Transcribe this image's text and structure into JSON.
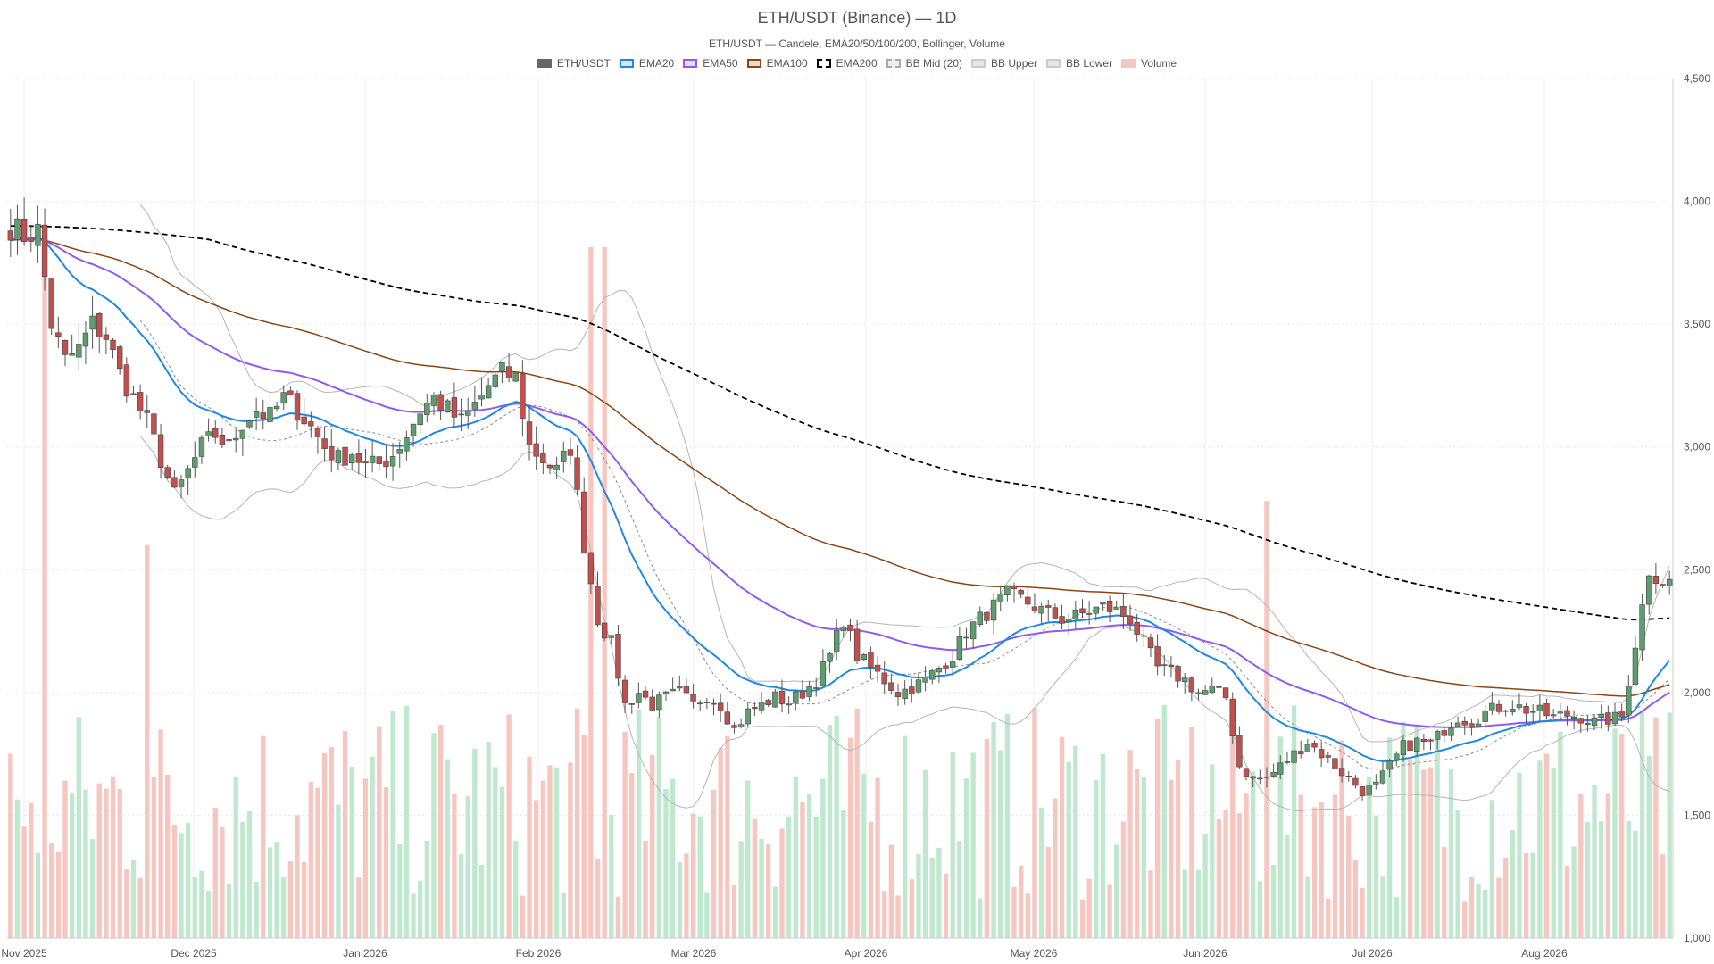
{
  "chart_data": {
    "type": "candlestick",
    "title": "ETH/USDT (Binance) — 1D",
    "subtitle": "ETH/USDT — Candele, EMA20/50/100/200, Bollinger, Volume",
    "ylim": [
      1000,
      4500
    ],
    "y_ticks": [
      "1,000",
      "1,500",
      "2,000",
      "2,500",
      "3,000",
      "3,500",
      "4,000",
      "4,500"
    ],
    "y_tick_values": [
      1000,
      1500,
      2000,
      2500,
      3000,
      3500,
      4000,
      4500
    ],
    "x_ticks": [
      "Nov 2025",
      "Dec 2025",
      "Jan 2026",
      "Feb 2026",
      "Mar 2026",
      "Apr 2026",
      "May 2026",
      "Jun 2026",
      "Jul 2026",
      "Aug 2026"
    ],
    "grid": true,
    "legend_placement": "top-center",
    "colors": {
      "up": "#5e9e6e",
      "down": "#c0504d",
      "ema20": "#1e88e5",
      "ema50": "#8e5cf0",
      "ema100": "#8b4513",
      "ema200": "#000000",
      "bb": "#b5b5b5",
      "vol_up": "#bfe8cf",
      "vol_down": "#f6c6c0"
    },
    "legend": [
      {
        "label": "ETH/USDT",
        "fill": "#666666",
        "border": "#666666"
      },
      {
        "label": "EMA20",
        "fill": "#d6e8f8",
        "border": "#1e88e5"
      },
      {
        "label": "EMA50",
        "fill": "#e6dcfb",
        "border": "#8e5cf0"
      },
      {
        "label": "EMA100",
        "fill": "#ead9cb",
        "border": "#8b4513"
      },
      {
        "label": "EMA200",
        "fill": "#ffffff",
        "border": "#000000",
        "dashed": true
      },
      {
        "label": "BB Mid (20)",
        "fill": "#eeeeee",
        "border": "#aaaaaa",
        "dashed": true
      },
      {
        "label": "BB Upper",
        "fill": "#e6e6e6",
        "border": "#cccccc"
      },
      {
        "label": "BB Lower",
        "fill": "#e6e6e6",
        "border": "#cccccc"
      },
      {
        "label": "Volume",
        "fill": "#f6c6c0",
        "border": "#f6c6c0"
      }
    ],
    "close_anchors": [
      [
        0,
        3900
      ],
      [
        2,
        3860
      ],
      [
        4,
        3880
      ],
      [
        6,
        3500
      ],
      [
        8,
        3350
      ],
      [
        10,
        3400
      ],
      [
        12,
        3500
      ],
      [
        14,
        3450
      ],
      [
        16,
        3300
      ],
      [
        18,
        3200
      ],
      [
        20,
        3100
      ],
      [
        22,
        2950
      ],
      [
        24,
        2800
      ],
      [
        26,
        2900
      ],
      [
        28,
        3000
      ],
      [
        30,
        3050
      ],
      [
        32,
        3000
      ],
      [
        34,
        3100
      ],
      [
        36,
        3150
      ],
      [
        38,
        3120
      ],
      [
        40,
        3200
      ],
      [
        42,
        3150
      ],
      [
        44,
        3080
      ],
      [
        46,
        3000
      ],
      [
        48,
        2950
      ],
      [
        50,
        2980
      ],
      [
        52,
        2920
      ],
      [
        54,
        2930
      ],
      [
        56,
        2970
      ],
      [
        58,
        3050
      ],
      [
        60,
        3150
      ],
      [
        62,
        3200
      ],
      [
        64,
        3150
      ],
      [
        66,
        3100
      ],
      [
        68,
        3170
      ],
      [
        70,
        3250
      ],
      [
        72,
        3300
      ],
      [
        74,
        3280
      ],
      [
        76,
        3000
      ],
      [
        78,
        2950
      ],
      [
        80,
        2900
      ],
      [
        82,
        3000
      ],
      [
        84,
        2600
      ],
      [
        86,
        2300
      ],
      [
        88,
        2200
      ],
      [
        90,
        1950
      ],
      [
        92,
        2000
      ],
      [
        94,
        1950
      ],
      [
        96,
        1980
      ],
      [
        98,
        2000
      ],
      [
        100,
        1950
      ],
      [
        102,
        1990
      ],
      [
        104,
        1950
      ],
      [
        106,
        1850
      ],
      [
        108,
        1920
      ],
      [
        110,
        1950
      ],
      [
        112,
        1980
      ],
      [
        114,
        1960
      ],
      [
        116,
        2000
      ],
      [
        118,
        2050
      ],
      [
        120,
        2150
      ],
      [
        122,
        2300
      ],
      [
        124,
        2150
      ],
      [
        126,
        2100
      ],
      [
        128,
        2050
      ],
      [
        130,
        2000
      ],
      [
        132,
        2020
      ],
      [
        134,
        2050
      ],
      [
        136,
        2100
      ],
      [
        138,
        2150
      ],
      [
        140,
        2250
      ],
      [
        142,
        2300
      ],
      [
        144,
        2350
      ],
      [
        146,
        2400
      ],
      [
        148,
        2380
      ],
      [
        150,
        2350
      ],
      [
        152,
        2320
      ],
      [
        154,
        2300
      ],
      [
        156,
        2310
      ],
      [
        158,
        2330
      ],
      [
        160,
        2350
      ],
      [
        162,
        2330
      ],
      [
        164,
        2300
      ],
      [
        166,
        2200
      ],
      [
        168,
        2100
      ],
      [
        170,
        2080
      ],
      [
        172,
        2050
      ],
      [
        174,
        2000
      ],
      [
        176,
        2010
      ],
      [
        178,
        1980
      ],
      [
        180,
        1700
      ],
      [
        182,
        1650
      ],
      [
        184,
        1650
      ],
      [
        186,
        1700
      ],
      [
        188,
        1750
      ],
      [
        190,
        1800
      ],
      [
        192,
        1750
      ],
      [
        194,
        1700
      ],
      [
        196,
        1650
      ],
      [
        198,
        1600
      ],
      [
        200,
        1620
      ],
      [
        202,
        1700
      ],
      [
        204,
        1780
      ],
      [
        206,
        1800
      ],
      [
        208,
        1790
      ],
      [
        210,
        1850
      ],
      [
        212,
        1900
      ],
      [
        214,
        1880
      ],
      [
        216,
        1920
      ],
      [
        218,
        1940
      ],
      [
        220,
        1950
      ],
      [
        222,
        1930
      ],
      [
        224,
        1920
      ],
      [
        226,
        1900
      ],
      [
        228,
        1910
      ],
      [
        230,
        1900
      ],
      [
        232,
        1880
      ],
      [
        234,
        1890
      ],
      [
        236,
        1900
      ],
      [
        238,
        2200
      ],
      [
        240,
        2500
      ],
      [
        242,
        2450
      ]
    ],
    "volume_pattern": [
      1700,
      1900,
      1500,
      1400,
      1600,
      2100,
      1800,
      1500,
      1700,
      1900
    ]
  }
}
